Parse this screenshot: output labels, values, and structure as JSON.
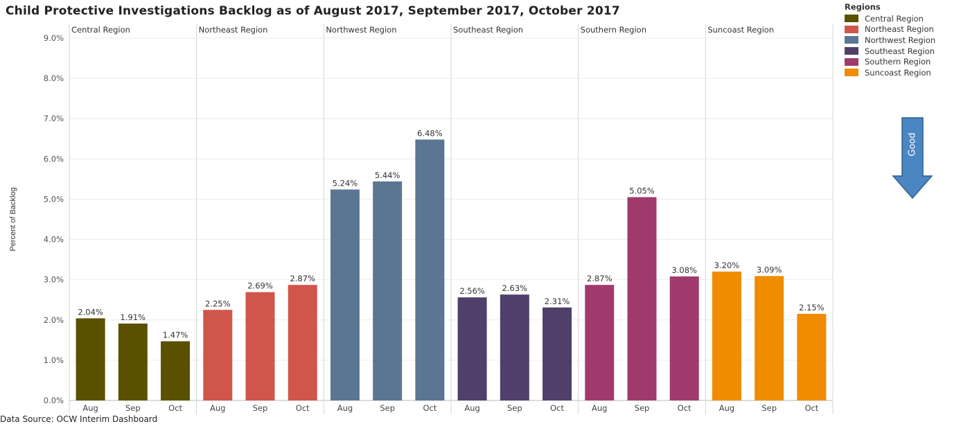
{
  "title": "Child Protective Investigations Backlog as of August 2017, September 2017, October 2017",
  "source_note": "Data Source: OCW Interim Dashboard",
  "legend": {
    "title": "Regions",
    "items": [
      {
        "label": "Central Region",
        "color": "#5a5100"
      },
      {
        "label": "Northeast Region",
        "color": "#d0564b"
      },
      {
        "label": "Northwest Region",
        "color": "#5b7693"
      },
      {
        "label": "Southeast Region",
        "color": "#503f6a"
      },
      {
        "label": "Southern Region",
        "color": "#a13a6c"
      },
      {
        "label": "Suncoast Region",
        "color": "#f08c00"
      }
    ]
  },
  "annotation": {
    "label": "Good",
    "color": "#4a86c1",
    "icon": "down-arrow-icon"
  },
  "chart_data": {
    "type": "bar",
    "ylabel": "Percent of Backlog",
    "ylim": [
      0,
      9
    ],
    "yticks": [
      "0.0%",
      "1.0%",
      "2.0%",
      "3.0%",
      "4.0%",
      "5.0%",
      "6.0%",
      "7.0%",
      "8.0%",
      "9.0%"
    ],
    "categories": [
      "Aug",
      "Sep",
      "Oct"
    ],
    "grid": true,
    "legend_position": "top-right",
    "panels": [
      {
        "name": "Central Region",
        "color": "#5a5100",
        "values": [
          2.04,
          1.91,
          1.47
        ],
        "labels": [
          "2.04%",
          "1.91%",
          "1.47%"
        ]
      },
      {
        "name": "Northeast Region",
        "color": "#d0564b",
        "values": [
          2.25,
          2.69,
          2.87
        ],
        "labels": [
          "2.25%",
          "2.69%",
          "2.87%"
        ]
      },
      {
        "name": "Northwest Region",
        "color": "#5b7693",
        "values": [
          5.24,
          5.44,
          6.48
        ],
        "labels": [
          "5.24%",
          "5.44%",
          "6.48%"
        ]
      },
      {
        "name": "Southeast Region",
        "color": "#503f6a",
        "values": [
          2.56,
          2.63,
          2.31
        ],
        "labels": [
          "2.56%",
          "2.63%",
          "2.31%"
        ]
      },
      {
        "name": "Southern Region",
        "color": "#a13a6c",
        "values": [
          2.87,
          5.05,
          3.08
        ],
        "labels": [
          "2.87%",
          "5.05%",
          "3.08%"
        ]
      },
      {
        "name": "Suncoast Region",
        "color": "#f08c00",
        "values": [
          3.2,
          3.09,
          2.15
        ],
        "labels": [
          "3.20%",
          "3.09%",
          "2.15%"
        ]
      }
    ]
  }
}
